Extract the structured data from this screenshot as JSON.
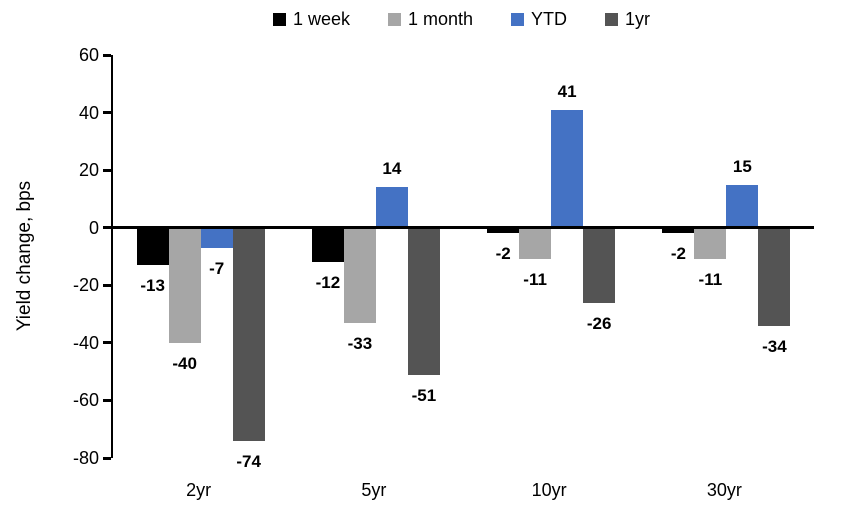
{
  "chart_data": {
    "type": "bar",
    "title": "",
    "ylabel": "Yield change, bps",
    "xlabel": "",
    "categories": [
      "2yr",
      "5yr",
      "10yr",
      "30yr"
    ],
    "series": [
      {
        "name": "1 week",
        "color": "#000000",
        "values": [
          -13,
          -12,
          -2,
          -2
        ]
      },
      {
        "name": "1 month",
        "color": "#A6A6A6",
        "values": [
          -40,
          -33,
          -11,
          -11
        ]
      },
      {
        "name": "YTD",
        "color": "#4472C4",
        "values": [
          -7,
          14,
          41,
          15
        ]
      },
      {
        "name": "1yr",
        "color": "#545454",
        "values": [
          -74,
          -51,
          -26,
          -34
        ]
      }
    ],
    "ylim": [
      -80,
      60
    ],
    "ytick_step": 20,
    "ytick_labels": [
      "60",
      "40",
      "20",
      "0",
      "-20",
      "-40",
      "-60",
      "-80"
    ],
    "grid": false,
    "legend_position": "top",
    "data_labels": true,
    "axis_color": "#000000"
  }
}
